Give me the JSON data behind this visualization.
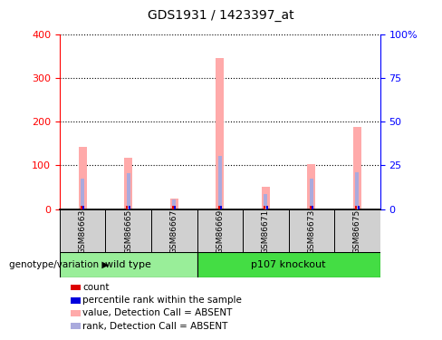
{
  "title": "GDS1931 / 1423397_at",
  "samples": [
    "GSM86663",
    "GSM86665",
    "GSM86667",
    "GSM86669",
    "GSM86671",
    "GSM86673",
    "GSM86675"
  ],
  "value_absent": [
    143,
    118,
    25,
    345,
    52,
    102,
    187
  ],
  "rank_absent": [
    70,
    82,
    23,
    122,
    35,
    70,
    85
  ],
  "count_red_height": [
    8,
    8,
    8,
    8,
    8,
    8,
    8
  ],
  "count_blue_height": [
    8,
    8,
    8,
    8,
    8,
    8,
    8
  ],
  "left_ylim": [
    0,
    400
  ],
  "right_ylim": [
    0,
    100
  ],
  "left_yticks": [
    0,
    100,
    200,
    300,
    400
  ],
  "right_yticks": [
    0,
    25,
    50,
    75,
    100
  ],
  "right_yticklabels": [
    "0",
    "25",
    "50",
    "75",
    "100%"
  ],
  "pink_color": "#FFAAAA",
  "lavender_color": "#AAAADD",
  "red_color": "#DD0000",
  "blue_color": "#0000DD",
  "wt_color": "#99EE99",
  "ko_color": "#44DD44",
  "group_label": "genotype/variation",
  "wt_label": "wild type",
  "ko_label": "p107 knockout",
  "legend_items": [
    {
      "color": "#DD0000",
      "label": "count"
    },
    {
      "color": "#0000DD",
      "label": "percentile rank within the sample"
    },
    {
      "color": "#FFAAAA",
      "label": "value, Detection Call = ABSENT"
    },
    {
      "color": "#AAAADD",
      "label": "rank, Detection Call = ABSENT"
    }
  ]
}
